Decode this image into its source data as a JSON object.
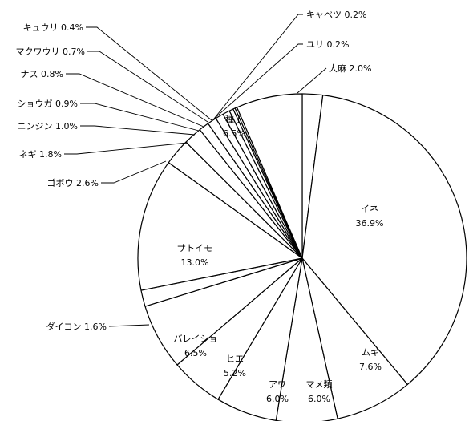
{
  "chart_data": {
    "type": "pie",
    "title": "",
    "start_position": "top",
    "direction": "clockwise",
    "colors": {
      "fill": "#ffffff",
      "stroke": "#000000",
      "background": "#ffffff"
    },
    "slices": [
      {
        "name": "大麻",
        "value": 2.0,
        "display": "2.0%",
        "label_mode": "outside"
      },
      {
        "name": "イネ",
        "value": 36.9,
        "display": "36.9%",
        "label_mode": "inside"
      },
      {
        "name": "ムギ",
        "value": 7.6,
        "display": "7.6%",
        "label_mode": "inside"
      },
      {
        "name": "マメ類",
        "value": 6.0,
        "display": "6.0%",
        "label_mode": "inside"
      },
      {
        "name": "アワ",
        "value": 6.0,
        "display": "6.0%",
        "label_mode": "inside"
      },
      {
        "name": "ヒエ",
        "value": 5.2,
        "display": "5.2%",
        "label_mode": "inside"
      },
      {
        "name": "バレイショ",
        "value": 6.5,
        "display": "6.5%",
        "label_mode": "inside"
      },
      {
        "name": "ダイコン",
        "value": 1.6,
        "display": "1.6%",
        "label_mode": "outside"
      },
      {
        "name": "サトイモ",
        "value": 13.0,
        "display": "13.0%",
        "label_mode": "inside"
      },
      {
        "name": "ゴボウ",
        "value": 2.6,
        "display": "2.6%",
        "label_mode": "outside"
      },
      {
        "name": "ネギ",
        "value": 1.8,
        "display": "1.8%",
        "label_mode": "outside"
      },
      {
        "name": "ニンジン",
        "value": 1.0,
        "display": "1.0%",
        "label_mode": "outside"
      },
      {
        "name": "ショウガ",
        "value": 0.9,
        "display": "0.9%",
        "label_mode": "outside"
      },
      {
        "name": "ナス",
        "value": 0.8,
        "display": "0.8%",
        "label_mode": "outside"
      },
      {
        "name": "マクワウリ",
        "value": 0.7,
        "display": "0.7%",
        "label_mode": "outside"
      },
      {
        "name": "キュウリ",
        "value": 0.4,
        "display": "0.4%",
        "label_mode": "outside"
      },
      {
        "name": "キャベツ",
        "value": 0.2,
        "display": "0.2%",
        "label_mode": "outside"
      },
      {
        "name": "ユリ",
        "value": 0.2,
        "display": "0.2%",
        "label_mode": "outside"
      },
      {
        "name": "種子",
        "value": 6.5,
        "display": "6.5%",
        "label_mode": "inside"
      }
    ]
  }
}
